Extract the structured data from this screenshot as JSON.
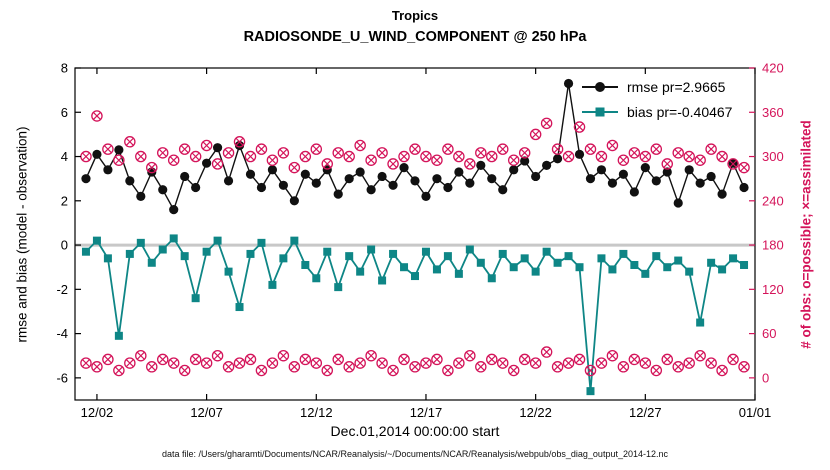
{
  "figure": {
    "title_line1": "Tropics",
    "title_line2": "RADIOSONDE_U_WIND_COMPONENT @ 250 hPa",
    "xlabel": "Dec.01,2014 00:00:00 start",
    "ylabel_left": "rmse and bias (model - observation)",
    "ylabel_right": "# of obs: o=possible; ×=assimilated",
    "caption": "data file: /Users/gharamti/Documents/NCAR/Reanalysis/~/Documents/NCAR/Reanalysis/webpub/obs_diag_output_2014-12.nc",
    "legend": [
      {
        "label": "rmse pr=2.9665",
        "series": "rmse"
      },
      {
        "label": "bias pr=-0.40467",
        "series": "bias"
      }
    ]
  },
  "colors": {
    "rmse": "#111111",
    "bias": "#0e8686",
    "obs": "#d4145a",
    "zero_line": "#c8c8c8"
  },
  "chart_data": {
    "type": "line",
    "x_start_day": 1.5,
    "x_step_days": 0.5,
    "x_axis_range_days": [
      1,
      32
    ],
    "x_ticks": [
      {
        "day": 2,
        "label": "12/02"
      },
      {
        "day": 7,
        "label": "12/07"
      },
      {
        "day": 12,
        "label": "12/12"
      },
      {
        "day": 17,
        "label": "12/17"
      },
      {
        "day": 22,
        "label": "12/22"
      },
      {
        "day": 27,
        "label": "12/27"
      },
      {
        "day": 32,
        "label": "01/01"
      }
    ],
    "left_axis": {
      "range": [
        -7,
        8
      ],
      "ticks": [
        -6,
        -4,
        -2,
        0,
        2,
        4,
        6,
        8
      ]
    },
    "right_axis": {
      "range": [
        -30,
        420
      ],
      "ticks": [
        0,
        60,
        120,
        180,
        240,
        300,
        360,
        420
      ]
    },
    "series": [
      {
        "name": "bias",
        "axis": "left",
        "color": "bias",
        "marker": "square-filled",
        "line": true,
        "line_width": 1.8,
        "values": [
          -0.3,
          0.2,
          -0.6,
          -4.1,
          -0.4,
          0.1,
          -0.8,
          -0.2,
          0.3,
          -0.5,
          -2.4,
          -0.3,
          0.2,
          -1.2,
          -2.8,
          -0.4,
          0.1,
          -1.8,
          -0.6,
          0.2,
          -0.9,
          -1.5,
          -0.3,
          -1.9,
          -0.5,
          -1.2,
          -0.2,
          -1.6,
          -0.4,
          -1.0,
          -1.4,
          -0.3,
          -1.1,
          -0.5,
          -1.3,
          -0.2,
          -0.8,
          -1.5,
          -0.4,
          -1.0,
          -0.6,
          -1.2,
          -0.3,
          -0.8,
          -0.5,
          -1.0,
          -6.6,
          -0.6,
          -1.1,
          -0.4,
          -0.9,
          -1.3,
          -0.5,
          -1.0,
          -0.7,
          -1.2,
          -3.5,
          -0.8,
          -1.1,
          -0.6,
          -0.9
        ]
      },
      {
        "name": "rmse",
        "axis": "left",
        "color": "rmse",
        "marker": "circle-filled",
        "line": true,
        "line_width": 1.4,
        "values": [
          3.0,
          4.1,
          3.4,
          4.3,
          2.9,
          2.2,
          3.3,
          2.5,
          1.6,
          3.1,
          2.6,
          3.7,
          4.4,
          2.9,
          4.5,
          3.2,
          2.6,
          3.4,
          2.7,
          2.0,
          3.2,
          2.8,
          3.4,
          2.3,
          3.0,
          3.3,
          2.5,
          3.1,
          2.7,
          3.5,
          2.9,
          2.2,
          3.0,
          2.6,
          3.3,
          2.8,
          3.6,
          3.0,
          2.5,
          3.4,
          3.8,
          3.1,
          3.6,
          3.9,
          7.3,
          4.1,
          3.0,
          3.4,
          2.8,
          3.2,
          2.4,
          3.5,
          2.9,
          3.3,
          1.9,
          3.4,
          2.8,
          3.1,
          2.3,
          3.7,
          2.6
        ]
      },
      {
        "name": "obs_possible",
        "axis": "right",
        "color": "obs",
        "marker": "circle-cross",
        "line": false,
        "line_width": 0,
        "values": [
          300,
          355,
          310,
          295,
          320,
          300,
          285,
          305,
          295,
          310,
          300,
          315,
          290,
          305,
          320,
          300,
          310,
          295,
          305,
          285,
          300,
          310,
          290,
          305,
          300,
          315,
          295,
          305,
          290,
          300,
          310,
          300,
          295,
          310,
          300,
          290,
          305,
          300,
          310,
          295,
          305,
          330,
          345,
          310,
          300,
          340,
          310,
          300,
          315,
          295,
          305,
          300,
          310,
          290,
          305,
          300,
          295,
          310,
          300,
          290,
          285
        ]
      },
      {
        "name": "obs_assimilated",
        "axis": "right",
        "color": "obs",
        "marker": "circle-cross",
        "line": false,
        "line_width": 0,
        "values": [
          20,
          15,
          25,
          10,
          20,
          30,
          15,
          25,
          20,
          10,
          25,
          20,
          30,
          15,
          20,
          25,
          10,
          20,
          30,
          15,
          25,
          20,
          10,
          25,
          15,
          20,
          30,
          20,
          10,
          25,
          15,
          20,
          25,
          10,
          20,
          30,
          15,
          25,
          20,
          10,
          25,
          20,
          35,
          15,
          20,
          25,
          10,
          20,
          30,
          15,
          25,
          20,
          10,
          25,
          15,
          20,
          30,
          20,
          10,
          25,
          15
        ]
      }
    ]
  }
}
